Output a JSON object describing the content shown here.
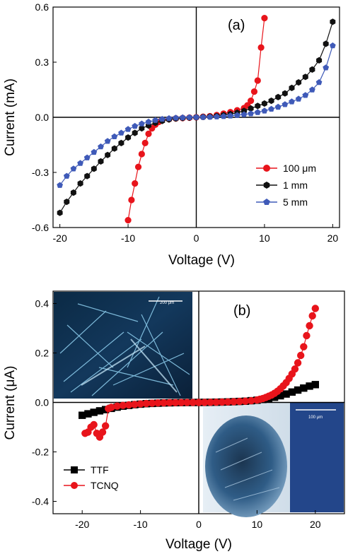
{
  "chart_data": [
    {
      "type": "line",
      "panel_label": "(a)",
      "xlabel": "Voltage (V)",
      "ylabel": "Current (mA)",
      "xlim": [
        -21,
        21
      ],
      "ylim": [
        -0.6,
        0.6
      ],
      "x_ticks": [
        "-20",
        "-10",
        "0",
        "10",
        "20"
      ],
      "y_ticks": [
        "0.6",
        "0.3",
        "0.0",
        "-0.3",
        "-0.6"
      ],
      "legend_position": "lower-right",
      "series": [
        {
          "name": "100 μm",
          "color": "#e8141b",
          "marker": "circle",
          "x": [
            -10,
            -9.5,
            -9,
            -8.5,
            -8,
            -7.5,
            -7,
            -6.5,
            -6,
            -5.5,
            -5,
            -4,
            -3,
            -2,
            -1,
            0,
            1,
            2,
            3,
            4,
            5,
            6,
            7,
            7.5,
            8,
            8.5,
            9,
            9.5,
            10
          ],
          "y": [
            -0.56,
            -0.45,
            -0.36,
            -0.27,
            -0.2,
            -0.14,
            -0.09,
            -0.06,
            -0.04,
            -0.025,
            -0.015,
            -0.01,
            -0.006,
            -0.004,
            -0.002,
            0,
            0.003,
            0.006,
            0.012,
            0.02,
            0.028,
            0.038,
            0.05,
            0.065,
            0.09,
            0.14,
            0.2,
            0.38,
            0.54
          ]
        },
        {
          "name": "1 mm",
          "color": "#111111",
          "marker": "hexagon",
          "x": [
            -20,
            -19,
            -18,
            -17,
            -16,
            -15,
            -14,
            -13,
            -12,
            -11,
            -10,
            -9,
            -8,
            -7,
            -6,
            -5,
            -4,
            -3,
            -2,
            -1,
            0,
            1,
            2,
            3,
            4,
            5,
            6,
            7,
            8,
            9,
            10,
            11,
            12,
            13,
            14,
            15,
            16,
            17,
            18,
            19,
            20
          ],
          "y": [
            -0.52,
            -0.46,
            -0.41,
            -0.36,
            -0.32,
            -0.28,
            -0.24,
            -0.205,
            -0.17,
            -0.14,
            -0.11,
            -0.085,
            -0.06,
            -0.045,
            -0.03,
            -0.02,
            -0.012,
            -0.007,
            -0.004,
            -0.002,
            0,
            0.002,
            0.004,
            0.007,
            0.012,
            0.018,
            0.025,
            0.035,
            0.048,
            0.062,
            0.075,
            0.09,
            0.11,
            0.13,
            0.16,
            0.19,
            0.22,
            0.26,
            0.31,
            0.4,
            0.52
          ]
        },
        {
          "name": "5 mm",
          "color": "#3f5ab8",
          "marker": "pentagon",
          "x": [
            -20,
            -19,
            -18,
            -17,
            -16,
            -15,
            -14,
            -13,
            -12,
            -11,
            -10,
            -9,
            -8,
            -7,
            -6,
            -5,
            -4,
            -3,
            -2,
            -1,
            0,
            1,
            2,
            3,
            4,
            5,
            6,
            7,
            8,
            9,
            10,
            11,
            12,
            13,
            14,
            15,
            16,
            17,
            18,
            19,
            20
          ],
          "y": [
            -0.37,
            -0.32,
            -0.28,
            -0.25,
            -0.22,
            -0.19,
            -0.16,
            -0.13,
            -0.105,
            -0.085,
            -0.065,
            -0.048,
            -0.035,
            -0.025,
            -0.016,
            -0.01,
            -0.006,
            -0.003,
            -0.0015,
            -0.0005,
            0,
            0.0005,
            0.0015,
            0.003,
            0.005,
            0.008,
            0.011,
            0.015,
            0.02,
            0.027,
            0.035,
            0.045,
            0.056,
            0.07,
            0.085,
            0.1,
            0.12,
            0.15,
            0.19,
            0.27,
            0.39
          ]
        }
      ]
    },
    {
      "type": "line",
      "panel_label": "(b)",
      "xlabel": "Voltage (V)",
      "ylabel": "Current (μA)",
      "xlim": [
        -25,
        25
      ],
      "ylim": [
        -0.45,
        0.45
      ],
      "x_ticks": [
        "-20",
        "-10",
        "0",
        "10",
        "20"
      ],
      "y_ticks": [
        "0.4",
        "0.2",
        "0.0",
        "-0.2",
        "-0.4"
      ],
      "legend_position": "lower-left",
      "insets": [
        {
          "position": "upper-left",
          "scale_text": "200 μm",
          "kind": "dark micrograph of needle-like crystals"
        },
        {
          "position": "lower-right",
          "scale_text": "100 μm",
          "kind": "bright-field micrograph of blue crystal domain"
        }
      ],
      "series": [
        {
          "name": "TTF",
          "color": "#000000",
          "marker": "square",
          "x": [
            -20,
            -19,
            -18,
            -17,
            -16,
            -15,
            -14,
            -13,
            -12,
            -11,
            -10,
            -9,
            -8,
            -7,
            -6,
            -5,
            -4,
            -3,
            -2,
            -1,
            0,
            1,
            2,
            3,
            4,
            5,
            6,
            7,
            8,
            9,
            10,
            11,
            12,
            13,
            14,
            15,
            16,
            17,
            18,
            19,
            20
          ],
          "y": [
            -0.052,
            -0.046,
            -0.04,
            -0.034,
            -0.029,
            -0.024,
            -0.019,
            -0.015,
            -0.012,
            -0.009,
            -0.007,
            -0.005,
            -0.004,
            -0.003,
            -0.002,
            -0.0015,
            -0.001,
            -0.0006,
            -0.0003,
            -0.0001,
            0,
            0.0002,
            0.0005,
            0.001,
            0.0015,
            0.002,
            0.003,
            0.004,
            0.005,
            0.007,
            0.009,
            0.012,
            0.016,
            0.021,
            0.027,
            0.034,
            0.042,
            0.05,
            0.058,
            0.066,
            0.072
          ]
        },
        {
          "name": "TCNQ",
          "color": "#e8141b",
          "marker": "circle",
          "x": [
            -19.5,
            -19,
            -18.5,
            -18,
            -17.5,
            -17,
            -16.5,
            -16,
            -15.5,
            -15,
            -14,
            -13,
            -12,
            -11,
            -10,
            -9,
            -8,
            -7,
            -6,
            -5,
            -4,
            -3,
            -2,
            -1,
            0,
            1,
            2,
            3,
            4,
            5,
            6,
            7,
            8,
            9,
            10,
            10.5,
            11,
            11.5,
            12,
            12.5,
            13,
            13.5,
            14,
            14.5,
            15,
            15.5,
            16,
            16.5,
            17,
            17.5,
            18,
            18.5,
            19,
            19.5,
            20
          ],
          "y": [
            -0.125,
            -0.12,
            -0.1,
            -0.09,
            -0.125,
            -0.14,
            -0.12,
            -0.095,
            -0.025,
            -0.02,
            -0.015,
            -0.012,
            -0.01,
            -0.008,
            -0.006,
            -0.004,
            -0.003,
            -0.002,
            -0.0015,
            -0.001,
            -0.0008,
            -0.0005,
            -0.0003,
            -0.0001,
            0,
            0.0002,
            0.0005,
            0.001,
            0.0015,
            0.002,
            0.003,
            0.004,
            0.005,
            0.007,
            0.01,
            0.013,
            0.016,
            0.02,
            0.025,
            0.03,
            0.037,
            0.045,
            0.055,
            0.067,
            0.08,
            0.097,
            0.115,
            0.135,
            0.16,
            0.19,
            0.225,
            0.27,
            0.31,
            0.35,
            0.38
          ]
        }
      ]
    }
  ]
}
